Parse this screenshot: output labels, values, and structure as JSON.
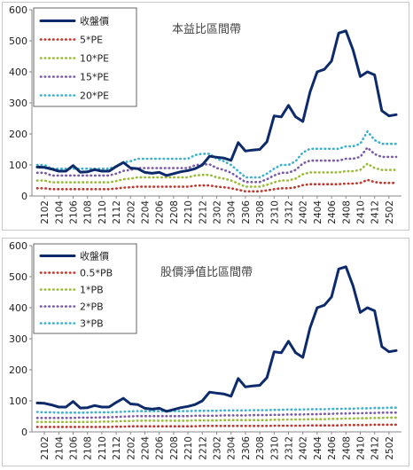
{
  "chart_data": [
    {
      "type": "line",
      "title": "本益比區間帶",
      "categories": [
        "2101",
        "2102",
        "2103",
        "2104",
        "2105",
        "2106",
        "2107",
        "2108",
        "2109",
        "2110",
        "2111",
        "2112",
        "2201",
        "2202",
        "2203",
        "2204",
        "2205",
        "2206",
        "2207",
        "2208",
        "2209",
        "2210",
        "2211",
        "2212",
        "2301",
        "2302",
        "2303",
        "2304",
        "2305",
        "2306",
        "2307",
        "2308",
        "2309",
        "2310",
        "2311",
        "2312",
        "2401",
        "2402",
        "2403",
        "2404",
        "2405",
        "2406",
        "2407",
        "2408",
        "2409",
        "2410",
        "2411",
        "2412",
        "2501",
        "2502",
        "2503"
      ],
      "xticks": [
        "2102",
        "2104",
        "2106",
        "2108",
        "2110",
        "2112",
        "2202",
        "2204",
        "2206",
        "2208",
        "2210",
        "2212",
        "2302",
        "2304",
        "2306",
        "2308",
        "2310",
        "2312",
        "2402",
        "2404",
        "2406",
        "2408",
        "2410",
        "2412",
        "2502"
      ],
      "yticks": [
        0,
        100,
        200,
        300,
        400,
        500,
        600
      ],
      "ylim": [
        0,
        600
      ],
      "legend_position": "top-left",
      "series": [
        {
          "name": "收盤價",
          "color": "#0d2a6b",
          "dash": false,
          "values": [
            93,
            92,
            87,
            80,
            80,
            98,
            77,
            78,
            85,
            80,
            80,
            95,
            108,
            90,
            88,
            76,
            73,
            76,
            66,
            72,
            78,
            82,
            88,
            100,
            128,
            125,
            122,
            115,
            172,
            145,
            148,
            150,
            175,
            258,
            255,
            292,
            255,
            240,
            335,
            400,
            408,
            435,
            525,
            532,
            470,
            385,
            400,
            390,
            275,
            258,
            262
          ]
        },
        {
          "name": "5*PE",
          "color": "#c0362c",
          "dash": true,
          "values": [
            25,
            25,
            22,
            22,
            22,
            22,
            22,
            22,
            22,
            22,
            22,
            24,
            27,
            28,
            30,
            30,
            30,
            30,
            30,
            30,
            30,
            30,
            33,
            34,
            34,
            30,
            28,
            25,
            20,
            15,
            15,
            15,
            18,
            22,
            25,
            25,
            28,
            35,
            38,
            38,
            38,
            38,
            38,
            40,
            40,
            42,
            52,
            45,
            42,
            42,
            42
          ]
        },
        {
          "name": "10*PE",
          "color": "#9bbb3b",
          "dash": true,
          "values": [
            50,
            50,
            44,
            44,
            44,
            44,
            44,
            44,
            44,
            44,
            44,
            48,
            54,
            56,
            60,
            60,
            60,
            60,
            60,
            60,
            60,
            60,
            66,
            68,
            68,
            60,
            56,
            50,
            40,
            30,
            30,
            30,
            36,
            44,
            50,
            50,
            56,
            70,
            76,
            76,
            76,
            76,
            76,
            80,
            80,
            84,
            104,
            90,
            84,
            84,
            84
          ]
        },
        {
          "name": "15*PE",
          "color": "#7a5ba8",
          "dash": true,
          "values": [
            75,
            75,
            66,
            66,
            66,
            66,
            66,
            66,
            66,
            66,
            66,
            72,
            81,
            84,
            90,
            90,
            90,
            90,
            90,
            90,
            90,
            90,
            99,
            102,
            102,
            90,
            84,
            75,
            60,
            45,
            45,
            45,
            54,
            66,
            75,
            75,
            84,
            105,
            114,
            114,
            114,
            114,
            114,
            120,
            120,
            126,
            156,
            135,
            126,
            126,
            126
          ]
        },
        {
          "name": "20*PE",
          "color": "#3fb0cc",
          "dash": true,
          "values": [
            100,
            100,
            88,
            88,
            88,
            88,
            88,
            88,
            88,
            88,
            88,
            96,
            108,
            112,
            120,
            120,
            120,
            120,
            120,
            120,
            120,
            120,
            132,
            136,
            136,
            120,
            112,
            100,
            80,
            60,
            60,
            60,
            72,
            88,
            100,
            100,
            112,
            140,
            152,
            152,
            152,
            152,
            152,
            160,
            160,
            168,
            208,
            180,
            168,
            168,
            168
          ]
        }
      ]
    },
    {
      "type": "line",
      "title": "股價淨值比區間帶",
      "categories": [
        "2101",
        "2102",
        "2103",
        "2104",
        "2105",
        "2106",
        "2107",
        "2108",
        "2109",
        "2110",
        "2111",
        "2112",
        "2201",
        "2202",
        "2203",
        "2204",
        "2205",
        "2206",
        "2207",
        "2208",
        "2209",
        "2210",
        "2211",
        "2212",
        "2301",
        "2302",
        "2303",
        "2304",
        "2305",
        "2306",
        "2307",
        "2308",
        "2309",
        "2310",
        "2311",
        "2312",
        "2401",
        "2402",
        "2403",
        "2404",
        "2405",
        "2406",
        "2407",
        "2408",
        "2409",
        "2410",
        "2411",
        "2412",
        "2501",
        "2502",
        "2503"
      ],
      "xticks": [
        "2102",
        "2104",
        "2106",
        "2108",
        "2110",
        "2112",
        "2202",
        "2204",
        "2206",
        "2208",
        "2210",
        "2212",
        "2302",
        "2304",
        "2306",
        "2308",
        "2310",
        "2312",
        "2402",
        "2404",
        "2406",
        "2408",
        "2410",
        "2412",
        "2502"
      ],
      "yticks": [
        0,
        100,
        200,
        300,
        400,
        500,
        600
      ],
      "ylim": [
        0,
        600
      ],
      "legend_position": "top-left",
      "series": [
        {
          "name": "收盤價",
          "color": "#0d2a6b",
          "dash": false,
          "values": [
            93,
            92,
            87,
            80,
            80,
            98,
            77,
            78,
            85,
            80,
            80,
            95,
            108,
            90,
            88,
            76,
            73,
            76,
            66,
            72,
            78,
            82,
            88,
            100,
            128,
            125,
            122,
            115,
            172,
            145,
            148,
            150,
            175,
            258,
            255,
            292,
            255,
            240,
            335,
            400,
            408,
            435,
            525,
            532,
            470,
            385,
            400,
            390,
            275,
            258,
            262
          ]
        },
        {
          "name": "0.5*PB",
          "color": "#c0362c",
          "dash": true,
          "values": [
            16,
            16,
            16,
            16,
            16,
            16,
            16,
            16,
            16,
            16,
            16,
            17,
            17,
            18,
            18,
            18,
            18,
            18,
            18,
            18,
            18,
            18,
            18,
            19,
            19,
            19,
            19,
            19,
            19,
            19,
            19,
            19,
            19,
            20,
            20,
            20,
            20,
            20,
            21,
            21,
            21,
            21,
            21,
            22,
            22,
            22,
            22,
            23,
            23,
            23,
            23
          ]
        },
        {
          "name": "1*PB",
          "color": "#9bbb3b",
          "dash": true,
          "values": [
            32,
            32,
            32,
            32,
            32,
            32,
            32,
            32,
            32,
            33,
            33,
            34,
            35,
            35,
            36,
            36,
            36,
            36,
            36,
            36,
            36,
            36,
            37,
            37,
            37,
            37,
            38,
            38,
            38,
            38,
            38,
            38,
            38,
            39,
            39,
            40,
            40,
            40,
            41,
            41,
            41,
            42,
            42,
            43,
            43,
            44,
            44,
            45,
            45,
            46,
            46
          ]
        },
        {
          "name": "2*PB",
          "color": "#7a5ba8",
          "dash": true,
          "values": [
            45,
            45,
            45,
            45,
            45,
            45,
            46,
            46,
            46,
            47,
            47,
            48,
            49,
            50,
            51,
            51,
            51,
            51,
            51,
            51,
            51,
            51,
            52,
            52,
            52,
            52,
            53,
            53,
            53,
            53,
            54,
            54,
            54,
            55,
            55,
            56,
            56,
            56,
            57,
            57,
            58,
            58,
            59,
            59,
            60,
            60,
            61,
            61,
            62,
            62,
            62
          ]
        },
        {
          "name": "3*PB",
          "color": "#3fb0cc",
          "dash": true,
          "values": [
            64,
            63,
            63,
            62,
            62,
            62,
            62,
            62,
            63,
            63,
            63,
            64,
            65,
            66,
            67,
            67,
            67,
            67,
            67,
            67,
            67,
            67,
            68,
            68,
            68,
            68,
            69,
            69,
            69,
            69,
            70,
            70,
            70,
            71,
            71,
            72,
            72,
            72,
            73,
            73,
            73,
            74,
            74,
            75,
            75,
            76,
            76,
            77,
            77,
            78,
            78
          ]
        }
      ]
    }
  ]
}
